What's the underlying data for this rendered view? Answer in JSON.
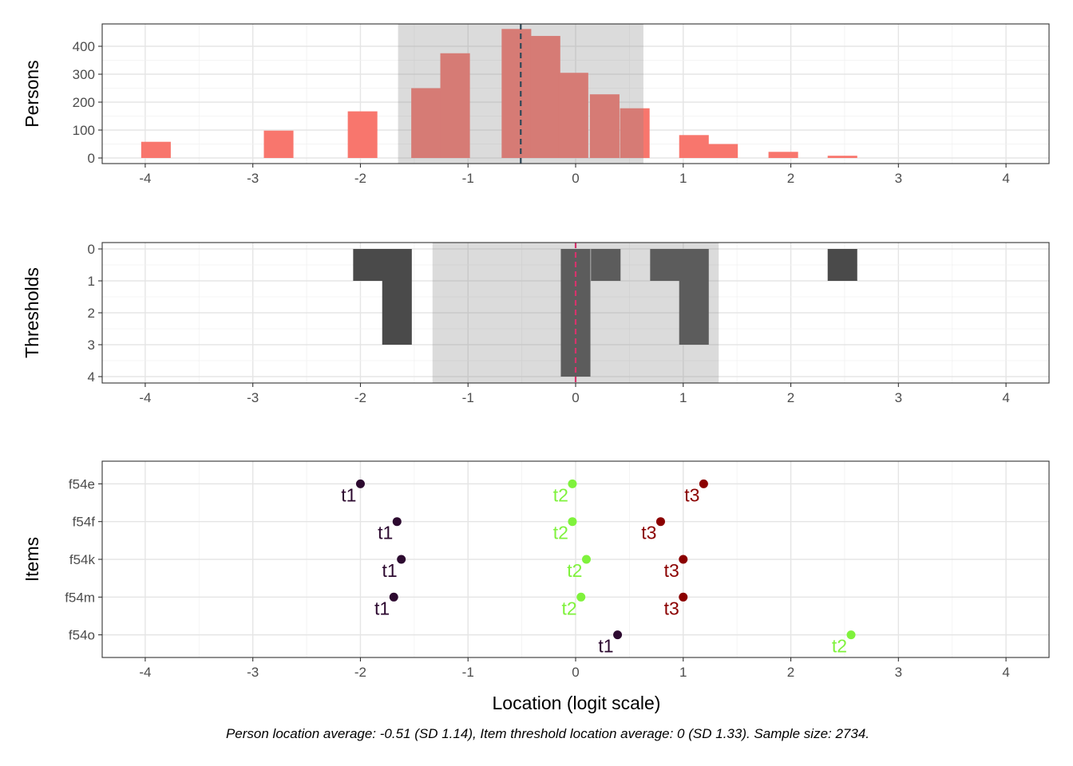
{
  "chart_data": [
    {
      "type": "bar",
      "panel": "persons",
      "ylabel": "Persons",
      "xlim": [
        -4.4,
        4.4
      ],
      "ylim": [
        -20,
        480
      ],
      "x_ticks": [
        -4,
        -3,
        -2,
        -1,
        0,
        1,
        2,
        3,
        4
      ],
      "x_tick_labels": [
        "-4",
        "-3",
        "-2",
        "-1",
        "0",
        "1",
        "2",
        "3",
        "4"
      ],
      "y_ticks": [
        0,
        100,
        200,
        300,
        400
      ],
      "y_tick_labels": [
        "0",
        "100",
        "200",
        "300",
        "400"
      ],
      "grid": true,
      "bar_color": "#F8766D",
      "bin_width": 0.275,
      "bins": [
        {
          "x": -3.9,
          "count": 58
        },
        {
          "x": -2.76,
          "count": 98
        },
        {
          "x": -1.98,
          "count": 167
        },
        {
          "x": -1.39,
          "count": 250
        },
        {
          "x": -1.12,
          "count": 375
        },
        {
          "x": -0.55,
          "count": 462
        },
        {
          "x": -0.28,
          "count": 437
        },
        {
          "x": -0.02,
          "count": 305
        },
        {
          "x": 0.27,
          "count": 228
        },
        {
          "x": 0.55,
          "count": 178
        },
        {
          "x": 1.1,
          "count": 82
        },
        {
          "x": 1.37,
          "count": 50
        },
        {
          "x": 1.93,
          "count": 22
        },
        {
          "x": 2.48,
          "count": 8
        }
      ],
      "mean_line": -0.51,
      "mean_line_color": "#2F4858",
      "sd_band": [
        -1.65,
        0.63
      ]
    },
    {
      "type": "bar",
      "panel": "thresholds",
      "ylabel": "Thresholds",
      "xlim": [
        -4.4,
        4.4
      ],
      "ylim": [
        4.2,
        -0.2
      ],
      "x_ticks": [
        -4,
        -3,
        -2,
        -1,
        0,
        1,
        2,
        3,
        4
      ],
      "x_tick_labels": [
        "-4",
        "-3",
        "-2",
        "-1",
        "0",
        "1",
        "2",
        "3",
        "4"
      ],
      "y_ticks": [
        0,
        1,
        2,
        3,
        4
      ],
      "y_tick_labels": [
        "0",
        "1",
        "2",
        "3",
        "4"
      ],
      "grid": true,
      "bar_color": "#4a4a4a",
      "bin_width": 0.275,
      "bins": [
        {
          "x": -1.93,
          "count": 1
        },
        {
          "x": -1.66,
          "count": 3
        },
        {
          "x": 0.0,
          "count": 4
        },
        {
          "x": 0.28,
          "count": 1
        },
        {
          "x": 0.83,
          "count": 1
        },
        {
          "x": 1.1,
          "count": 3
        },
        {
          "x": 2.48,
          "count": 1
        }
      ],
      "mean_line": 0,
      "mean_line_color": "#D6336C",
      "sd_band": [
        -1.33,
        1.33
      ]
    },
    {
      "type": "scatter",
      "panel": "items",
      "ylabel": "Items",
      "xlabel": "Location (logit scale)",
      "xlim": [
        -4.4,
        4.4
      ],
      "x_ticks": [
        -4,
        -3,
        -2,
        -1,
        0,
        1,
        2,
        3,
        4
      ],
      "x_tick_labels": [
        "-4",
        "-3",
        "-2",
        "-1",
        "0",
        "1",
        "2",
        "3",
        "4"
      ],
      "categories": [
        "f54e",
        "f54f",
        "f54k",
        "f54m",
        "f54o"
      ],
      "grid": true,
      "threshold_colors": {
        "t1": "#2D0A30",
        "t2": "#7FF23C",
        "t3": "#8B0000"
      },
      "points": [
        {
          "item": "f54e",
          "label": "t1",
          "x": -2.0
        },
        {
          "item": "f54e",
          "label": "t2",
          "x": -0.03
        },
        {
          "item": "f54e",
          "label": "t3",
          "x": 1.19
        },
        {
          "item": "f54f",
          "label": "t1",
          "x": -1.66
        },
        {
          "item": "f54f",
          "label": "t2",
          "x": -0.03
        },
        {
          "item": "f54f",
          "label": "t3",
          "x": 0.79
        },
        {
          "item": "f54k",
          "label": "t1",
          "x": -1.62
        },
        {
          "item": "f54k",
          "label": "t2",
          "x": 0.1
        },
        {
          "item": "f54k",
          "label": "t3",
          "x": 1.0
        },
        {
          "item": "f54m",
          "label": "t1",
          "x": -1.69
        },
        {
          "item": "f54m",
          "label": "t2",
          "x": 0.05
        },
        {
          "item": "f54m",
          "label": "t3",
          "x": 1.0
        },
        {
          "item": "f54o",
          "label": "t1",
          "x": 0.39
        },
        {
          "item": "f54o",
          "label": "t2",
          "x": 2.56
        }
      ]
    }
  ],
  "caption": "Person location average: -0.51 (SD 1.14), Item threshold location average: 0 (SD 1.33). Sample size: 2734."
}
